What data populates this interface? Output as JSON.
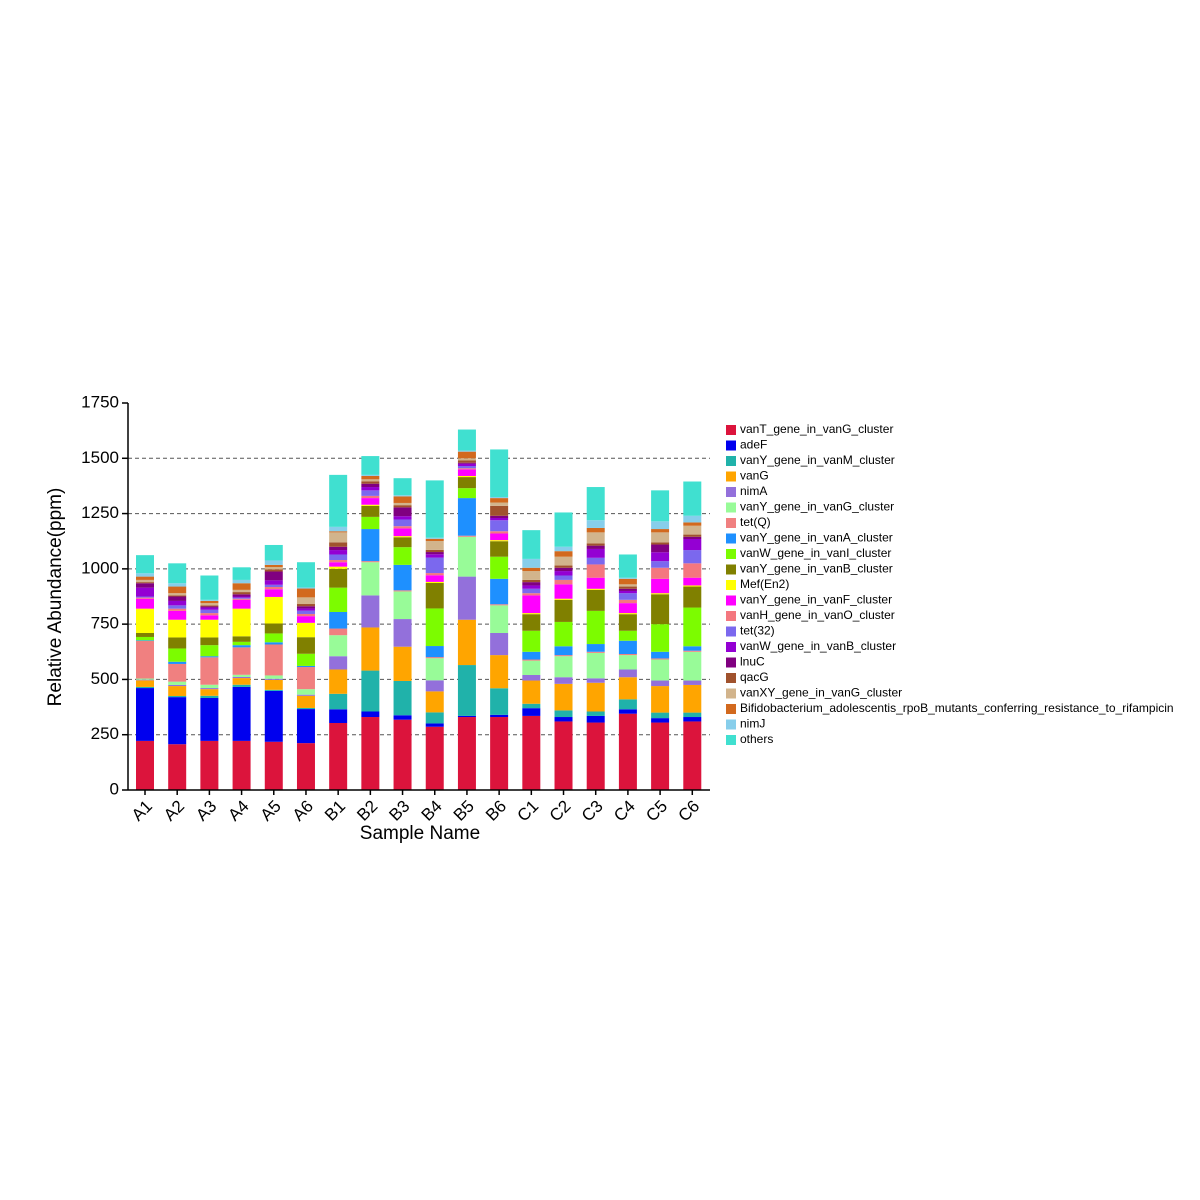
{
  "chart_data": {
    "type": "stacked_bar",
    "x_label": "Sample Name",
    "y_label": "Relative Abundance(ppm)",
    "categories": [
      "A1",
      "A2",
      "A3",
      "A4",
      "A5",
      "A6",
      "B1",
      "B2",
      "B3",
      "B4",
      "B5",
      "B6",
      "C1",
      "C2",
      "C3",
      "C4",
      "C5",
      "C6"
    ],
    "ylim": [
      0,
      1750
    ],
    "yticks": [
      0,
      250,
      500,
      750,
      1000,
      1250,
      1500,
      1750
    ],
    "grid": true,
    "legend": "right",
    "series": [
      {
        "name": "vanT_gene_in_vanG_cluster",
        "color": "#dc143c",
        "values": [
          222,
          207,
          222,
          222,
          218,
          212,
          303,
          330,
          318,
          286,
          330,
          330,
          335,
          310,
          305,
          345,
          305,
          310
        ]
      },
      {
        "name": "adeF",
        "color": "#0000ee",
        "values": [
          239,
          213,
          194,
          244,
          230,
          154,
          62,
          25,
          20,
          15,
          5,
          10,
          35,
          20,
          30,
          20,
          20,
          20
        ]
      },
      {
        "name": "vanY_gene_in_vanM_cluster",
        "color": "#20b2aa",
        "values": [
          5,
          5,
          10,
          10,
          5,
          5,
          70,
          185,
          155,
          50,
          230,
          120,
          20,
          30,
          20,
          45,
          25,
          20
        ]
      },
      {
        "name": "vanG",
        "color": "#ffa500",
        "values": [
          30,
          45,
          30,
          30,
          45,
          55,
          110,
          195,
          155,
          95,
          205,
          150,
          105,
          120,
          130,
          100,
          120,
          125
        ]
      },
      {
        "name": "nimA",
        "color": "#9370db",
        "values": [
          3,
          5,
          5,
          5,
          5,
          5,
          60,
          145,
          125,
          50,
          195,
          100,
          25,
          30,
          20,
          35,
          25,
          20
        ]
      },
      {
        "name": "vanY_gene_in_vanG_cluster",
        "color": "#98fb98",
        "values": [
          5,
          15,
          15,
          10,
          15,
          25,
          95,
          150,
          125,
          100,
          180,
          125,
          65,
          95,
          115,
          65,
          95,
          130
        ]
      },
      {
        "name": "tet(Q)",
        "color": "#f08080",
        "values": [
          170,
          80,
          124,
          124,
          140,
          100,
          30,
          5,
          5,
          5,
          5,
          5,
          5,
          5,
          5,
          5,
          5,
          5
        ]
      },
      {
        "name": "vanY_gene_in_vanA_cluster",
        "color": "#1e90ff",
        "values": [
          3,
          10,
          5,
          10,
          10,
          5,
          75,
          145,
          115,
          50,
          170,
          115,
          35,
          40,
          35,
          60,
          30,
          20
        ]
      },
      {
        "name": "vanW_gene_in_vanI_cluster",
        "color": "#7cfc00",
        "values": [
          15,
          60,
          50,
          15,
          40,
          55,
          110,
          55,
          80,
          170,
          45,
          100,
          95,
          110,
          150,
          45,
          125,
          175
        ]
      },
      {
        "name": "vanY_gene_in_vanB_cluster",
        "color": "#808000",
        "values": [
          18,
          50,
          35,
          25,
          45,
          75,
          85,
          50,
          45,
          115,
          50,
          70,
          75,
          100,
          95,
          75,
          135,
          95
        ]
      },
      {
        "name": "Mef(En2)",
        "color": "#ffff00",
        "values": [
          110,
          80,
          80,
          125,
          120,
          65,
          10,
          5,
          5,
          5,
          5,
          5,
          5,
          5,
          5,
          5,
          5,
          5
        ]
      },
      {
        "name": "vanY_gene_in_vanF_cluster",
        "color": "#ff00ff",
        "values": [
          45,
          40,
          20,
          40,
          35,
          30,
          20,
          30,
          35,
          30,
          30,
          30,
          80,
          65,
          50,
          45,
          65,
          35
        ]
      },
      {
        "name": "vanH_gene_in_vanO_cluster",
        "color": "#f4777f",
        "values": [
          5,
          10,
          10,
          5,
          10,
          10,
          10,
          10,
          10,
          10,
          5,
          10,
          10,
          20,
          60,
          15,
          50,
          65
        ]
      },
      {
        "name": "tet(32)",
        "color": "#7b68ee",
        "values": [
          5,
          15,
          15,
          5,
          10,
          15,
          25,
          25,
          30,
          70,
          10,
          50,
          20,
          20,
          30,
          30,
          30,
          60
        ]
      },
      {
        "name": "vanW_gene_in_vanB_cluster",
        "color": "#9400d3",
        "values": [
          40,
          20,
          10,
          5,
          20,
          10,
          20,
          15,
          15,
          15,
          10,
          10,
          15,
          20,
          40,
          10,
          40,
          50
        ]
      },
      {
        "name": "lnuC",
        "color": "#800080",
        "values": [
          20,
          20,
          5,
          10,
          40,
          10,
          15,
          15,
          40,
          10,
          5,
          10,
          15,
          15,
          15,
          10,
          35,
          10
        ]
      },
      {
        "name": "qacG",
        "color": "#a0522d",
        "values": [
          5,
          5,
          5,
          10,
          10,
          10,
          20,
          10,
          10,
          10,
          10,
          45,
          10,
          10,
          10,
          10,
          10,
          10
        ]
      },
      {
        "name": "vanXY_gene_in_vanG_cluster",
        "color": "#d2b48c",
        "values": [
          10,
          10,
          10,
          10,
          10,
          30,
          45,
          10,
          10,
          40,
          10,
          15,
          40,
          40,
          50,
          10,
          45,
          40
        ]
      },
      {
        "name": "Bifidobacterium_adolescentis_rpoB_mutants_conferring_resistance_to_rifampicin",
        "color": "#d2691e",
        "values": [
          15,
          30,
          10,
          30,
          10,
          40,
          5,
          15,
          30,
          10,
          30,
          20,
          15,
          25,
          20,
          25,
          15,
          15
        ]
      },
      {
        "name": "nimJ",
        "color": "#87ceeb",
        "values": [
          15,
          15,
          5,
          15,
          20,
          5,
          20,
          5,
          5,
          5,
          5,
          5,
          40,
          20,
          35,
          5,
          35,
          30
        ]
      },
      {
        "name": "others",
        "color": "#40e0d0",
        "values": [
          82,
          90,
          110,
          57,
          70,
          114,
          235,
          85,
          77,
          259,
          95,
          215,
          130,
          155,
          150,
          105,
          140,
          155
        ]
      }
    ]
  }
}
